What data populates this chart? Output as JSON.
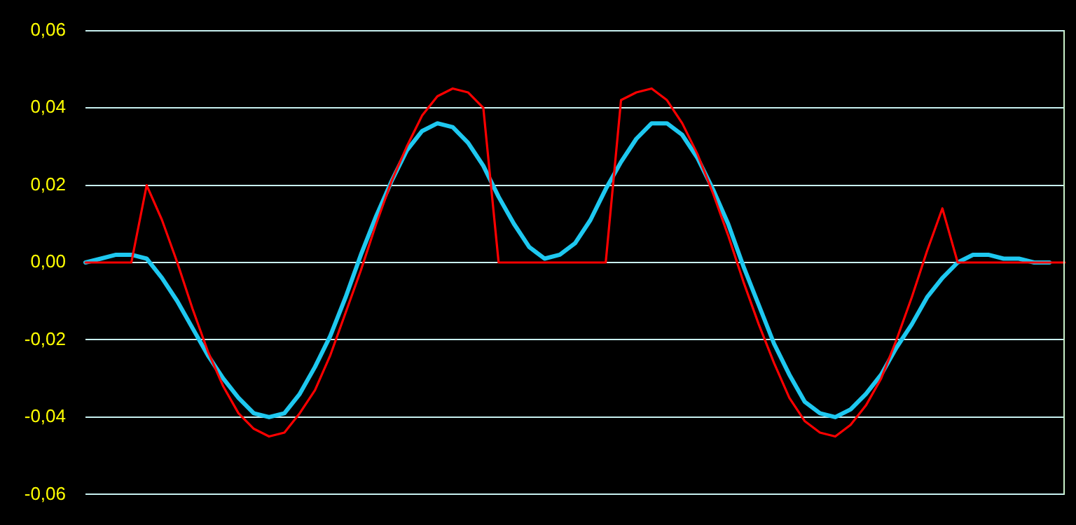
{
  "chart_data": {
    "type": "line",
    "categories": [
      null,
      null,
      null,
      null,
      null,
      null,
      null,
      null,
      null,
      null,
      null,
      null,
      null,
      null,
      null,
      null,
      null,
      null,
      null,
      null,
      null,
      null,
      null,
      null,
      null,
      null,
      null,
      null,
      null,
      null,
      null,
      null,
      null,
      null,
      null,
      null,
      null,
      null,
      null,
      null,
      null,
      null,
      null,
      null,
      null,
      null,
      null,
      null,
      null,
      null,
      null,
      null,
      null,
      null,
      null,
      null,
      null,
      null,
      null,
      null,
      null,
      null,
      null,
      null,
      null
    ],
    "series": [
      {
        "color": "#ff0000",
        "values": [
          0,
          0,
          0,
          0,
          0.02,
          0.011,
          0,
          -0.012,
          -0.023,
          -0.032,
          -0.039,
          -0.043,
          -0.045,
          -0.044,
          -0.039,
          -0.033,
          -0.024,
          -0.013,
          -0.002,
          0.01,
          0.021,
          0.03,
          0.038,
          0.043,
          0.045,
          0.044,
          0.04,
          0,
          0,
          0,
          0,
          0,
          0,
          0,
          0,
          0.042,
          0.044,
          0.045,
          0.042,
          0.036,
          0.028,
          0.018,
          0.007,
          -0.005,
          -0.016,
          -0.026,
          -0.035,
          -0.041,
          -0.044,
          -0.045,
          -0.042,
          -0.037,
          -0.03,
          -0.02,
          -0.009,
          0.003,
          0.014,
          0,
          0,
          0,
          0,
          0,
          0,
          0,
          0
        ]
      },
      {
        "color": "#1ec8f0",
        "values": [
          0,
          0.001,
          0.002,
          0.002,
          0.001,
          -0.004,
          -0.01,
          -0.017,
          -0.024,
          -0.03,
          -0.035,
          -0.039,
          -0.04,
          -0.039,
          -0.034,
          -0.027,
          -0.019,
          -0.009,
          0.002,
          0.012,
          0.021,
          0.029,
          0.034,
          0.036,
          0.035,
          0.031,
          0.025,
          0.017,
          0.01,
          0.004,
          0.001,
          0.002,
          0.005,
          0.011,
          0.019,
          0.026,
          0.032,
          0.036,
          0.036,
          0.033,
          0.027,
          0.019,
          0.01,
          -0.001,
          -0.011,
          -0.021,
          -0.029,
          -0.036,
          -0.039,
          -0.04,
          -0.038,
          -0.034,
          -0.029,
          -0.022,
          -0.016,
          -0.009,
          -0.004,
          0,
          0.002,
          0.002,
          0.001,
          0.001,
          0,
          0,
          null
        ]
      }
    ],
    "ylim": [
      -0.06,
      0.06
    ],
    "yticks": [
      {
        "value": -0.06,
        "label": "-0,06"
      },
      {
        "value": -0.04,
        "label": "-0,04"
      },
      {
        "value": -0.02,
        "label": "-0,02"
      },
      {
        "value": 0,
        "label": "0,00"
      },
      {
        "value": 0.02,
        "label": "0,02"
      },
      {
        "value": 0.04,
        "label": "0,04"
      },
      {
        "value": 0.06,
        "label": "0,06"
      }
    ],
    "grid": "y",
    "legend": false,
    "tick_labels": "y",
    "marker": "none",
    "line_style": "solid"
  }
}
